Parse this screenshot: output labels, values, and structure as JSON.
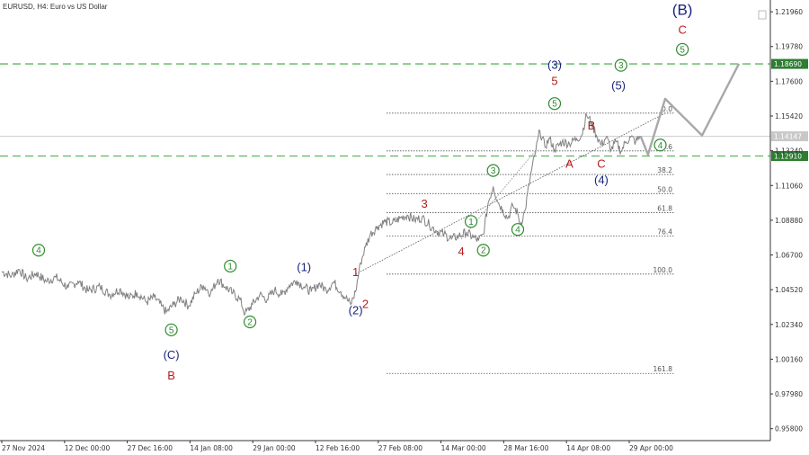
{
  "chart_title": "EURUSD, H4:  Euro vs US Dollar",
  "chart_data": {
    "type": "line",
    "symbol": "EURUSD",
    "timeframe": "H4",
    "title": "EURUSD, H4:  Euro vs US Dollar",
    "y_ticks": [
      "1.21960",
      "1.19780",
      "1.17600",
      "1.15420",
      "1.13240",
      "1.11060",
      "1.08880",
      "1.06700",
      "1.04520",
      "1.02340",
      "1.00160",
      "0.97980",
      "0.95800"
    ],
    "x_ticks": [
      "27 Nov 2024",
      "12 Dec 00:00",
      "27 Dec 16:00",
      "14 Jan 08:00",
      "29 Jan 00:00",
      "12 Feb 16:00",
      "27 Feb 08:00",
      "14 Mar 00:00",
      "28 Mar 16:00",
      "14 Apr 08:00",
      "29 Apr 00:00"
    ],
    "ylim": [
      0.9505,
      1.227
    ],
    "grid": false,
    "current_price": "1.14147",
    "price_series": [
      {
        "t": 0,
        "p": 1.0565
      },
      {
        "t": 4,
        "p": 1.054
      },
      {
        "t": 7,
        "p": 1.058
      },
      {
        "t": 10,
        "p": 1.052
      },
      {
        "t": 14,
        "p": 1.0555
      },
      {
        "t": 18,
        "p": 1.0505
      },
      {
        "t": 22,
        "p": 1.053
      },
      {
        "t": 27,
        "p": 1.0465
      },
      {
        "t": 31,
        "p": 1.0505
      },
      {
        "t": 35,
        "p": 1.0445
      },
      {
        "t": 40,
        "p": 1.047
      },
      {
        "t": 44,
        "p": 1.042
      },
      {
        "t": 48,
        "p": 1.0455
      },
      {
        "t": 52,
        "p": 1.04
      },
      {
        "t": 55,
        "p": 1.0435
      },
      {
        "t": 59,
        "p": 1.0375
      },
      {
        "t": 62,
        "p": 1.0405
      },
      {
        "t": 65,
        "p": 1.035
      },
      {
        "t": 67,
        "p": 1.031
      },
      {
        "t": 70,
        "p": 1.036
      },
      {
        "t": 73,
        "p": 1.04
      },
      {
        "t": 76,
        "p": 1.035
      },
      {
        "t": 79,
        "p": 1.043
      },
      {
        "t": 82,
        "p": 1.048
      },
      {
        "t": 85,
        "p": 1.043
      },
      {
        "t": 88,
        "p": 1.052
      },
      {
        "t": 91,
        "p": 1.047
      },
      {
        "t": 94,
        "p": 1.043
      },
      {
        "t": 97,
        "p": 1.039
      },
      {
        "t": 99,
        "p": 1.03
      },
      {
        "t": 102,
        "p": 1.036
      },
      {
        "t": 105,
        "p": 1.042
      },
      {
        "t": 108,
        "p": 1.039
      },
      {
        "t": 111,
        "p": 1.045
      },
      {
        "t": 114,
        "p": 1.042
      },
      {
        "t": 117,
        "p": 1.048
      },
      {
        "t": 120,
        "p": 1.051
      },
      {
        "t": 123,
        "p": 1.047
      },
      {
        "t": 126,
        "p": 1.044
      },
      {
        "t": 129,
        "p": 1.049
      },
      {
        "t": 132,
        "p": 1.045
      },
      {
        "t": 135,
        "p": 1.05
      },
      {
        "t": 138,
        "p": 1.044
      },
      {
        "t": 140,
        "p": 1.04
      },
      {
        "t": 142,
        "p": 1.036
      },
      {
        "t": 144,
        "p": 1.044
      },
      {
        "t": 146,
        "p": 1.062
      },
      {
        "t": 148,
        "p": 1.072
      },
      {
        "t": 150,
        "p": 1.08
      },
      {
        "t": 153,
        "p": 1.085
      },
      {
        "t": 156,
        "p": 1.088
      },
      {
        "t": 159,
        "p": 1.087
      },
      {
        "t": 162,
        "p": 1.09
      },
      {
        "t": 165,
        "p": 1.092
      },
      {
        "t": 168,
        "p": 1.089
      },
      {
        "t": 171,
        "p": 1.0905
      },
      {
        "t": 174,
        "p": 1.086
      },
      {
        "t": 177,
        "p": 1.082
      },
      {
        "t": 180,
        "p": 1.08
      },
      {
        "t": 183,
        "p": 1.077
      },
      {
        "t": 186,
        "p": 1.079
      },
      {
        "t": 189,
        "p": 1.081
      },
      {
        "t": 192,
        "p": 1.078
      },
      {
        "t": 194,
        "p": 1.076
      },
      {
        "t": 196,
        "p": 1.08
      },
      {
        "t": 198,
        "p": 1.1
      },
      {
        "t": 200,
        "p": 1.11
      },
      {
        "t": 202,
        "p": 1.1
      },
      {
        "t": 204,
        "p": 1.095
      },
      {
        "t": 206,
        "p": 1.09
      },
      {
        "t": 208,
        "p": 1.098
      },
      {
        "t": 210,
        "p": 1.093
      },
      {
        "t": 211,
        "p": 1.086
      },
      {
        "t": 213,
        "p": 1.095
      },
      {
        "t": 215,
        "p": 1.115
      },
      {
        "t": 217,
        "p": 1.13
      },
      {
        "t": 219,
        "p": 1.145
      },
      {
        "t": 221,
        "p": 1.135
      },
      {
        "t": 223,
        "p": 1.14
      },
      {
        "t": 225,
        "p": 1.133
      },
      {
        "t": 228,
        "p": 1.138
      },
      {
        "t": 231,
        "p": 1.137
      },
      {
        "t": 234,
        "p": 1.14
      },
      {
        "t": 236,
        "p": 1.142
      },
      {
        "t": 238,
        "p": 1.155
      },
      {
        "t": 240,
        "p": 1.15
      },
      {
        "t": 242,
        "p": 1.142
      },
      {
        "t": 244,
        "p": 1.136
      },
      {
        "t": 246,
        "p": 1.141
      },
      {
        "t": 248,
        "p": 1.133
      },
      {
        "t": 250,
        "p": 1.138
      },
      {
        "t": 252,
        "p": 1.132
      },
      {
        "t": 254,
        "p": 1.138
      },
      {
        "t": 256,
        "p": 1.141
      },
      {
        "t": 258,
        "p": 1.138
      },
      {
        "t": 260,
        "p": 1.1415
      }
    ],
    "forecast_path": [
      {
        "t": 260,
        "p": 1.1415
      },
      {
        "t": 263,
        "p": 1.13
      },
      {
        "t": 270,
        "p": 1.165
      },
      {
        "t": 285,
        "p": 1.142
      },
      {
        "t": 300,
        "p": 1.187
      }
    ],
    "horizontal_levels": [
      {
        "value": "1.18690",
        "style": "dashed",
        "color": "#5cb85c"
      },
      {
        "value": "1.12910",
        "style": "dashed",
        "color": "#5cb85c"
      },
      {
        "value": "1.14147",
        "style": "solid",
        "color": "#cccccc"
      }
    ],
    "fibonacci": [
      {
        "label": "0.0",
        "price": 1.156
      },
      {
        "label": "23.6",
        "price": 1.1323
      },
      {
        "label": "38.2",
        "price": 1.1175
      },
      {
        "label": "50.0",
        "price": 1.1055
      },
      {
        "label": "61.8",
        "price": 1.0935
      },
      {
        "label": "76.4",
        "price": 1.0788
      },
      {
        "label": "100.0",
        "price": 1.055
      },
      {
        "label": "161.8",
        "price": 0.9927
      }
    ],
    "wave_labels": [
      {
        "text": "4",
        "style": "circle",
        "color": "#2e8b2e",
        "t": 15,
        "p": 1.07
      },
      {
        "text": "5",
        "style": "circle",
        "color": "#2e8b2e",
        "t": 69,
        "p": 1.02
      },
      {
        "text": "(C)",
        "style": "plain",
        "color": "#1a237e",
        "t": 69,
        "p": 1.004
      },
      {
        "text": "B",
        "style": "plain",
        "color": "#b71c1c",
        "t": 69,
        "p": 0.991
      },
      {
        "text": "1",
        "style": "circle",
        "color": "#2e8b2e",
        "t": 93,
        "p": 1.06
      },
      {
        "text": "2",
        "style": "circle",
        "color": "#2e8b2e",
        "t": 101,
        "p": 1.025
      },
      {
        "text": "(1)",
        "style": "plain",
        "color": "#1a237e",
        "t": 123,
        "p": 1.059
      },
      {
        "text": "1",
        "style": "plain",
        "color": "#b71c1c",
        "t": 144,
        "p": 1.056
      },
      {
        "text": "2",
        "style": "plain",
        "color": "#b71c1c",
        "t": 148,
        "p": 1.036
      },
      {
        "text": "(2)",
        "style": "plain",
        "color": "#1a237e",
        "t": 144,
        "p": 1.032
      },
      {
        "text": "3",
        "style": "plain",
        "color": "#b71c1c",
        "t": 172,
        "p": 1.099
      },
      {
        "text": "4",
        "style": "plain",
        "color": "#b71c1c",
        "t": 187,
        "p": 1.069
      },
      {
        "text": "1",
        "style": "circle",
        "color": "#2e8b2e",
        "t": 191,
        "p": 1.088
      },
      {
        "text": "2",
        "style": "circle",
        "color": "#2e8b2e",
        "t": 196,
        "p": 1.07
      },
      {
        "text": "3",
        "style": "circle",
        "color": "#2e8b2e",
        "t": 200,
        "p": 1.12
      },
      {
        "text": "4",
        "style": "circle",
        "color": "#2e8b2e",
        "t": 210,
        "p": 1.083
      },
      {
        "text": "5",
        "style": "circle",
        "color": "#2e8b2e",
        "t": 225,
        "p": 1.162
      },
      {
        "text": "5",
        "style": "plain",
        "color": "#b71c1c",
        "t": 225,
        "p": 1.176
      },
      {
        "text": "(3)",
        "style": "plain",
        "color": "#1a237e",
        "t": 225,
        "p": 1.186
      },
      {
        "text": "A",
        "style": "plain",
        "color": "#b71c1c",
        "t": 231,
        "p": 1.124
      },
      {
        "text": "B",
        "style": "plain",
        "color": "#b71c1c",
        "t": 240,
        "p": 1.148
      },
      {
        "text": "C",
        "style": "plain",
        "color": "#b71c1c",
        "t": 244,
        "p": 1.124
      },
      {
        "text": "(4)",
        "style": "plain",
        "color": "#1a237e",
        "t": 244,
        "p": 1.114
      },
      {
        "text": "(5)",
        "style": "plain",
        "color": "#1a237e",
        "t": 251,
        "p": 1.173
      },
      {
        "text": "3",
        "style": "circle",
        "color": "#2e8b2e",
        "t": 252,
        "p": 1.186
      },
      {
        "text": "4",
        "style": "circle",
        "color": "#2e8b2e",
        "t": 268,
        "p": 1.136
      },
      {
        "text": "5",
        "style": "circle",
        "color": "#2e8b2e",
        "t": 277,
        "p": 1.196
      },
      {
        "text": "C",
        "style": "plain",
        "color": "#b71c1c",
        "t": 277,
        "p": 1.208
      },
      {
        "text": "(B)",
        "style": "plain",
        "color": "#1a237e",
        "t": 277,
        "p": 1.22
      }
    ]
  },
  "colors": {
    "price_line": "#808080",
    "forecast_line": "#a8a8a8",
    "dashed_level": "#5cb85c",
    "level_label_bg": "#2e7d32",
    "current_label_bg": "#c8c8c8",
    "wave_green": "#2e8b2e",
    "wave_navy": "#1a237e",
    "wave_red": "#b71c1c"
  }
}
